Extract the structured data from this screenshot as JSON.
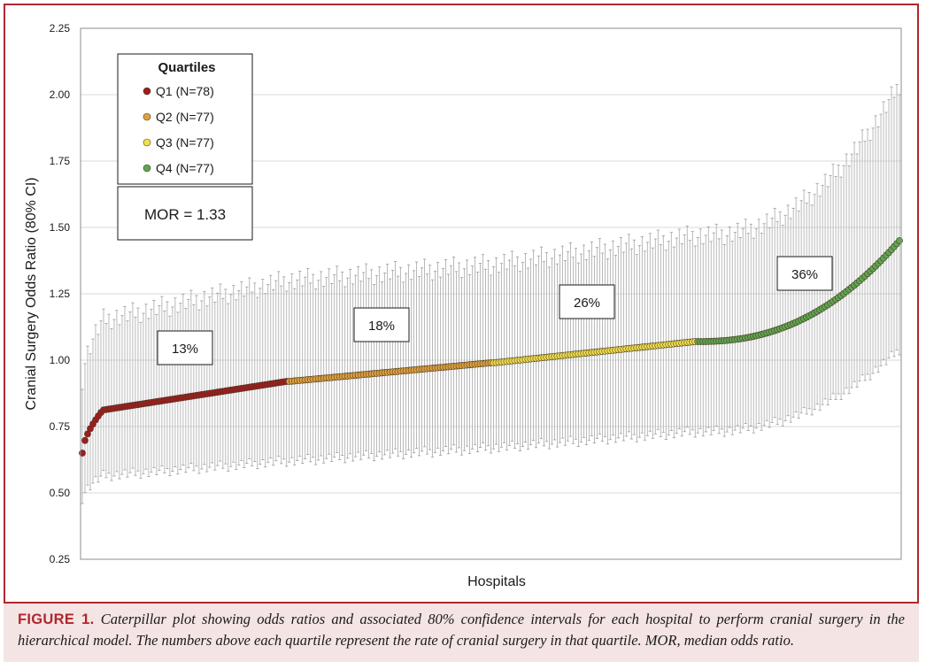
{
  "caption": {
    "label": "FIGURE 1.",
    "text": "Caterpillar plot showing odds ratios and associated 80% confidence intervals for each hospital to perform cranial surgery in the hierarchical model. The numbers above each quartile represent the rate of cranial surgery in that quartile. MOR, median odds ratio."
  },
  "chart_data": {
    "type": "scatter",
    "title": "",
    "xlabel": "Hospitals",
    "ylabel": "Cranial Surgery Odds Ratio (80% CI)",
    "ylim": [
      0.25,
      2.25
    ],
    "yticks": [
      "0.25",
      "0.50",
      "0.75",
      "1.00",
      "1.25",
      "1.50",
      "1.75",
      "2.00",
      "2.25"
    ],
    "grid": "horizontal",
    "legend": {
      "title": "Quartiles",
      "placement": "top-left",
      "entries": [
        {
          "label": "Q1 (N=78)",
          "color": "#a01c1c"
        },
        {
          "label": "Q2 (N=77)",
          "color": "#e0a23c"
        },
        {
          "label": "Q3 (N=77)",
          "color": "#f2e04a"
        },
        {
          "label": "Q4 (N=77)",
          "color": "#5fa64f"
        }
      ]
    },
    "mor_label": "MOR = 1.33",
    "series": [
      {
        "name": "Q1 (N=78)",
        "count": 78,
        "color": "#a01c1c",
        "or_range": [
          0.65,
          0.92
        ],
        "ci_range": [
          [
            0.48,
            0.93
          ],
          [
            0.62,
            1.3
          ]
        ],
        "rate_label": "13%"
      },
      {
        "name": "Q2 (N=77)",
        "count": 77,
        "color": "#e0a23c",
        "or_range": [
          0.92,
          0.99
        ],
        "ci_range": [
          [
            0.62,
            1.3
          ],
          [
            0.67,
            1.36
          ]
        ],
        "rate_label": "18%"
      },
      {
        "name": "Q3 (N=77)",
        "count": 77,
        "color": "#f2e04a",
        "or_range": [
          0.99,
          1.07
        ],
        "ci_range": [
          [
            0.67,
            1.36
          ],
          [
            0.73,
            1.47
          ]
        ],
        "rate_label": "26%"
      },
      {
        "name": "Q4 (N=77)",
        "count": 77,
        "color": "#5fa64f",
        "or_range": [
          1.07,
          1.45
        ],
        "ci_range": [
          [
            0.73,
            1.47
          ],
          [
            1.04,
            2.04
          ]
        ],
        "rate_label": "36%"
      }
    ]
  }
}
